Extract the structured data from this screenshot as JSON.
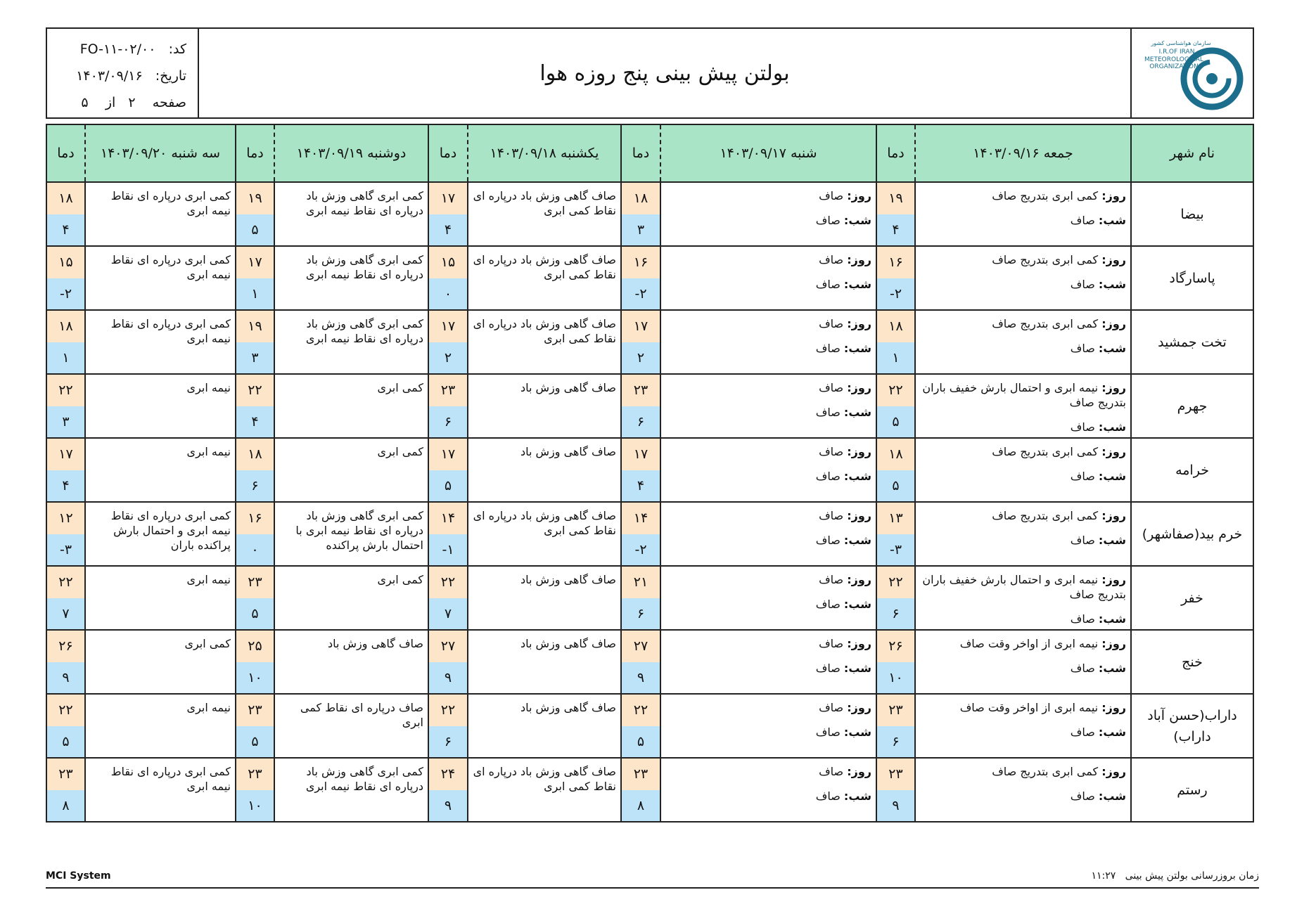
{
  "header": {
    "code_label": "کد:",
    "code": "FO-۱۱-۰۲/۰۰",
    "date_label": "تاریخ:",
    "date": "۱۴۰۳/۰۹/۱۶",
    "page_label": "صفحه",
    "page": "۲",
    "of_label": "از",
    "pages": "۵",
    "title": "بولتن پیش بینی پنج روزه هوا",
    "logo": [
      "سازمان هواشناسی کشور",
      "I.R.OF IRAN",
      "METEOROLOGICAL",
      "ORGANIZATION"
    ]
  },
  "table": {
    "headers": [
      "نام شهر",
      "جمعه ۱۴۰۳/۰۹/۱۶",
      "دما",
      "شنبه ۱۴۰۳/۰۹/۱۷",
      "دما",
      "یکشنبه ۱۴۰۳/۰۹/۱۸",
      "دما",
      "دوشنبه ۱۴۰۳/۰۹/۱۹",
      "دما",
      "سه شنبه ۱۴۰۳/۰۹/۲۰",
      "دما"
    ],
    "day_label": "روز:",
    "night_label": "شب:",
    "rows": [
      {
        "city": "بیضا",
        "days": [
          {
            "day": "کمی ابری بتدریج صاف",
            "night": "صاف",
            "high": "۱۹",
            "low": "۴"
          },
          {
            "day": "صاف",
            "night": "صاف",
            "high": "۱۸",
            "low": "۳"
          },
          {
            "text": "صاف گاهی وزش باد درپاره ای نقاط کمی ابری",
            "high": "۱۷",
            "low": "۴"
          },
          {
            "text": "کمی ابری گاهی وزش باد درپاره ای نقاط نیمه ابری",
            "high": "۱۹",
            "low": "۵"
          },
          {
            "text": "کمی ابری درپاره ای نقاط نیمه ابری",
            "high": "۱۸",
            "low": "۴"
          }
        ]
      },
      {
        "city": "پاسارگاد",
        "days": [
          {
            "day": "کمی ابری بتدریج صاف",
            "night": "صاف",
            "high": "۱۶",
            "low": "-۲"
          },
          {
            "day": "صاف",
            "night": "صاف",
            "high": "۱۶",
            "low": "-۲"
          },
          {
            "text": "صاف گاهی وزش باد درپاره ای نقاط کمی ابری",
            "high": "۱۵",
            "low": "۰"
          },
          {
            "text": "کمی ابری گاهی وزش باد درپاره ای نقاط نیمه ابری",
            "high": "۱۷",
            "low": "۱"
          },
          {
            "text": "کمی ابری درپاره ای نقاط نیمه ابری",
            "high": "۱۵",
            "low": "-۲"
          }
        ]
      },
      {
        "city": "تخت جمشید",
        "days": [
          {
            "day": "کمی ابری بتدریج صاف",
            "night": "صاف",
            "high": "۱۸",
            "low": "۱"
          },
          {
            "day": "صاف",
            "night": "صاف",
            "high": "۱۷",
            "low": "۲"
          },
          {
            "text": "صاف گاهی وزش باد درپاره ای نقاط کمی ابری",
            "high": "۱۷",
            "low": "۲"
          },
          {
            "text": "کمی ابری گاهی وزش باد درپاره ای نقاط نیمه ابری",
            "high": "۱۹",
            "low": "۳"
          },
          {
            "text": "کمی ابری درپاره ای نقاط نیمه ابری",
            "high": "۱۸",
            "low": "۱"
          }
        ]
      },
      {
        "city": "جهرم",
        "days": [
          {
            "day": "نیمه ابری و احتمال بارش خفیف باران بتدریج صاف",
            "night": "صاف",
            "high": "۲۲",
            "low": "۵"
          },
          {
            "day": "صاف",
            "night": "صاف",
            "high": "۲۳",
            "low": "۶"
          },
          {
            "text": "صاف گاهی وزش باد",
            "high": "۲۳",
            "low": "۶"
          },
          {
            "text": "کمی ابری",
            "high": "۲۲",
            "low": "۴"
          },
          {
            "text": "نیمه ابری",
            "high": "۲۲",
            "low": "۳"
          }
        ]
      },
      {
        "city": "خرامه",
        "days": [
          {
            "day": "کمی ابری بتدریج صاف",
            "night": "صاف",
            "high": "۱۸",
            "low": "۵"
          },
          {
            "day": "صاف",
            "night": "صاف",
            "high": "۱۷",
            "low": "۴"
          },
          {
            "text": "صاف گاهی وزش باد",
            "high": "۱۷",
            "low": "۵"
          },
          {
            "text": "کمی ابری",
            "high": "۱۸",
            "low": "۶"
          },
          {
            "text": "نیمه ابری",
            "high": "۱۷",
            "low": "۴"
          }
        ]
      },
      {
        "city": "خرم بید(صفاشهر)",
        "days": [
          {
            "day": "کمی ابری بتدریج صاف",
            "night": "صاف",
            "high": "۱۳",
            "low": "-۳"
          },
          {
            "day": "صاف",
            "night": "صاف",
            "high": "۱۴",
            "low": "-۲"
          },
          {
            "text": "صاف گاهی وزش باد درپاره ای نقاط کمی ابری",
            "high": "۱۴",
            "low": "-۱"
          },
          {
            "text": "کمی ابری گاهی وزش باد درپاره ای نقاط نیمه ابری با احتمال بارش پراکنده",
            "high": "۱۶",
            "low": "۰"
          },
          {
            "text": "کمی ابری درپاره ای نقاط نیمه ابری و احتمال بارش پراکنده باران",
            "high": "۱۲",
            "low": "-۳"
          }
        ]
      },
      {
        "city": "خفر",
        "days": [
          {
            "day": "نیمه ابری و احتمال بارش خفیف باران بتدریج صاف",
            "night": "صاف",
            "high": "۲۲",
            "low": "۶"
          },
          {
            "day": "صاف",
            "night": "صاف",
            "high": "۲۱",
            "low": "۶"
          },
          {
            "text": "صاف گاهی وزش باد",
            "high": "۲۲",
            "low": "۷"
          },
          {
            "text": "کمی ابری",
            "high": "۲۳",
            "low": "۵"
          },
          {
            "text": "نیمه ابری",
            "high": "۲۲",
            "low": "۷"
          }
        ]
      },
      {
        "city": "خنج",
        "days": [
          {
            "day": "نیمه ابری از اواخر وقت صاف",
            "night": "صاف",
            "high": "۲۶",
            "low": "۱۰"
          },
          {
            "day": "صاف",
            "night": "صاف",
            "high": "۲۷",
            "low": "۹"
          },
          {
            "text": "صاف گاهی وزش باد",
            "high": "۲۷",
            "low": "۹"
          },
          {
            "text": "صاف گاهی وزش باد",
            "high": "۲۵",
            "low": "۱۰"
          },
          {
            "text": "کمی ابری",
            "high": "۲۶",
            "low": "۹"
          }
        ]
      },
      {
        "city": "داراب(حسن آباد داراب)",
        "days": [
          {
            "day": "نیمه ابری از اواخر وقت صاف",
            "night": "صاف",
            "high": "۲۳",
            "low": "۶"
          },
          {
            "day": "صاف",
            "night": "صاف",
            "high": "۲۲",
            "low": "۵"
          },
          {
            "text": "صاف گاهی وزش باد",
            "high": "۲۲",
            "low": "۶"
          },
          {
            "text": "صاف درپاره ای نقاط کمی ابری",
            "high": "۲۳",
            "low": "۵"
          },
          {
            "text": "نیمه ابری",
            "high": "۲۲",
            "low": "۵"
          }
        ]
      },
      {
        "city": "رستم",
        "days": [
          {
            "day": "کمی ابری بتدریج صاف",
            "night": "صاف",
            "high": "۲۳",
            "low": "۹"
          },
          {
            "day": "صاف",
            "night": "صاف",
            "high": "۲۳",
            "low": "۸"
          },
          {
            "text": "صاف گاهی وزش باد درپاره ای نقاط کمی ابری",
            "high": "۲۴",
            "low": "۹"
          },
          {
            "text": "کمی ابری گاهی وزش باد درپاره ای نقاط نیمه ابری",
            "high": "۲۳",
            "low": "۱۰"
          },
          {
            "text": "کمی ابری درپاره ای نقاط نیمه ابری",
            "high": "۲۳",
            "low": "۸"
          }
        ]
      }
    ]
  },
  "footer": {
    "system": "MCI System",
    "update_label": "زمان بروزرسانی بولتن پیش بینی",
    "update_time": "۱۱:۲۷"
  }
}
